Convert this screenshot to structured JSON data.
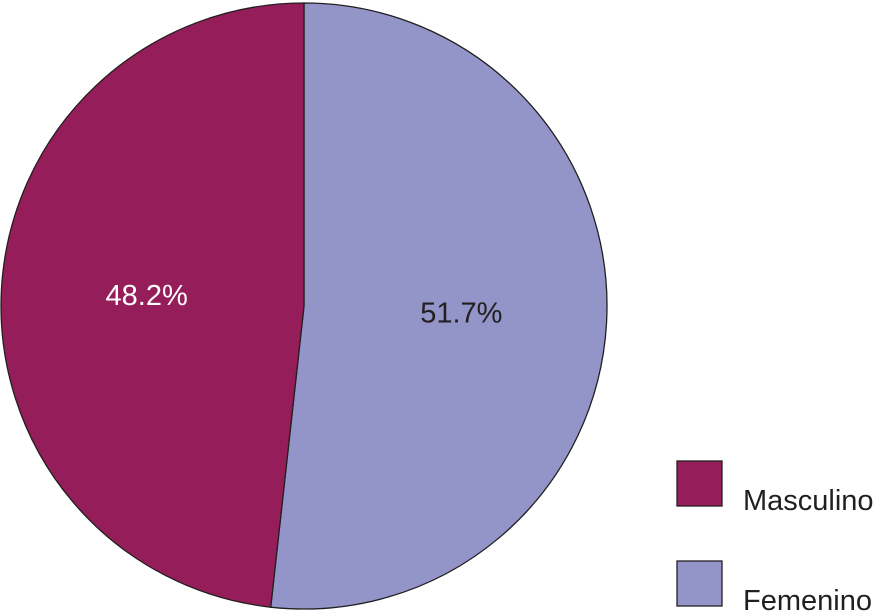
{
  "chart_data": {
    "type": "pie",
    "start_angle_deg": 0,
    "direction": "clockwise",
    "slices": [
      {
        "label": "Femenino",
        "value": 51.7,
        "display": "51.7%",
        "color": "#9394c8",
        "label_color": "#231f20"
      },
      {
        "label": "Masculino",
        "value": 48.2,
        "display": "48.2%",
        "color": "#951e5a",
        "label_color": "#ffffff"
      }
    ],
    "legend": {
      "placement": "bottom-right",
      "items": [
        {
          "label": "Masculino",
          "color": "#951e5a"
        },
        {
          "label": "Femenino",
          "color": "#9394c8"
        }
      ]
    }
  }
}
